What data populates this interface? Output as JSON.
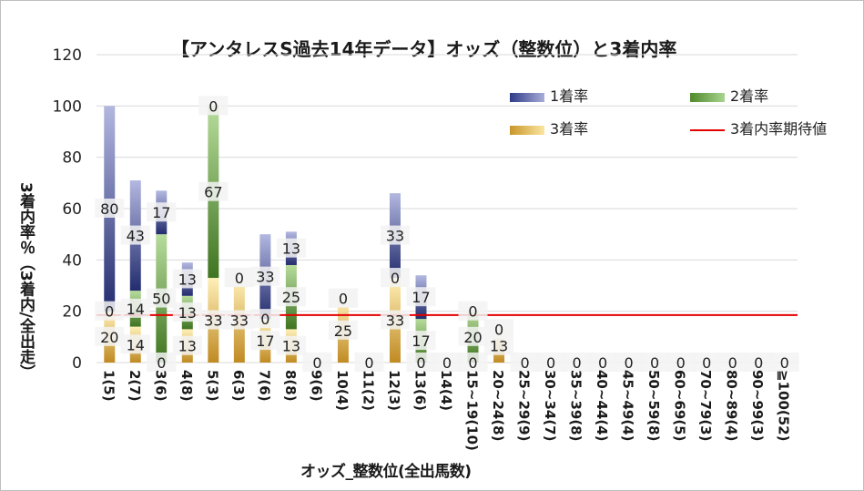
{
  "chart_data": {
    "type": "bar",
    "title": "【アンタレスS過去14年データ】オッズ（整数位）と3着内率",
    "ylabel": "3着内率％（3着内/全出走）",
    "xlabel": "オッズ_整数位(全出馬数)",
    "ylim": [
      0,
      120
    ],
    "yticks": [
      0,
      20,
      40,
      60,
      80,
      100,
      120
    ],
    "categories": [
      "1(5)",
      "2(7)",
      "3(6)",
      "4(8)",
      "5(3)",
      "6(3)",
      "7(6)",
      "8(8)",
      "9(6)",
      "10(4)",
      "11(2)",
      "12(3)",
      "13(6)",
      "14(4)",
      "15~19(10)",
      "20~24(8)",
      "25~29(9)",
      "30~34(7)",
      "35~39(8)",
      "40~44(4)",
      "45~49(4)",
      "50~59(8)",
      "60~69(5)",
      "70~79(3)",
      "80~89(4)",
      "90~99(3)",
      "≧100(52)"
    ],
    "series": [
      {
        "name": "1着率",
        "color": "#2e3a87",
        "values": [
          80,
          43,
          17,
          13,
          0,
          0,
          33,
          13,
          0,
          0,
          0,
          33,
          17,
          0,
          0,
          0,
          0,
          0,
          0,
          0,
          0,
          0,
          0,
          0,
          0,
          0,
          0
        ]
      },
      {
        "name": "2着率",
        "color": "#4f8a2a",
        "values": [
          0,
          14,
          50,
          13,
          67,
          0,
          0,
          25,
          0,
          0,
          0,
          0,
          17,
          0,
          20,
          0,
          0,
          0,
          0,
          0,
          0,
          0,
          0,
          0,
          0,
          0,
          0
        ]
      },
      {
        "name": "3着率",
        "color": "#c8962a",
        "values": [
          20,
          14,
          0,
          13,
          33,
          33,
          17,
          13,
          0,
          25,
          0,
          33,
          0,
          0,
          0,
          13,
          0,
          0,
          0,
          0,
          0,
          0,
          0,
          0,
          0,
          0,
          0
        ]
      }
    ],
    "reference_line": {
      "name": "3着内率期待値",
      "value": 18.5,
      "color": "#e30000"
    },
    "legend_position": "top-right"
  }
}
